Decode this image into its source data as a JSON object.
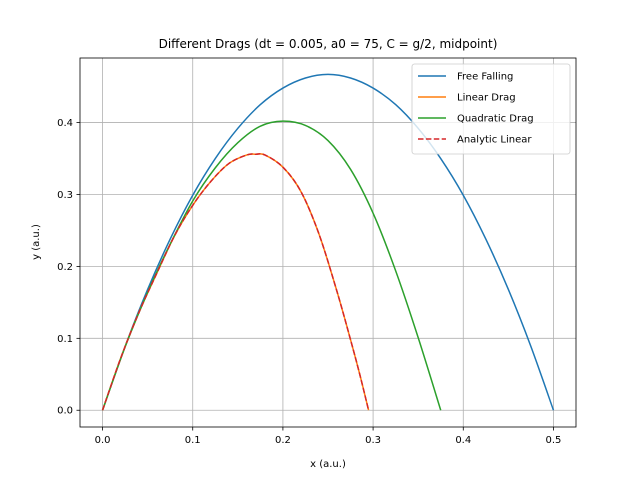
{
  "chart_data": {
    "type": "line",
    "title": "Different Drags (dt = 0.005, a0 = 75, C = g/2, midpoint)",
    "xlabel": "x (a.u.)",
    "ylabel": "y (a.u.)",
    "xlim": [
      -0.025,
      0.525
    ],
    "ylim": [
      -0.0233,
      0.4898
    ],
    "xticks": [
      0.0,
      0.1,
      0.2,
      0.3,
      0.4,
      0.5
    ],
    "xtick_labels": [
      "0.0",
      "0.1",
      "0.2",
      "0.3",
      "0.4",
      "0.5"
    ],
    "yticks": [
      0.0,
      0.1,
      0.2,
      0.3,
      0.4
    ],
    "ytick_labels": [
      "0.0",
      "0.1",
      "0.2",
      "0.3",
      "0.4"
    ],
    "grid": true,
    "legend_position": "upper right",
    "series": [
      {
        "name": "Free Falling",
        "color": "#1f77b4",
        "style": "solid",
        "x": [
          0.0,
          0.025,
          0.05,
          0.075,
          0.1,
          0.125,
          0.15,
          0.175,
          0.2,
          0.225,
          0.25,
          0.275,
          0.3,
          0.325,
          0.35,
          0.375,
          0.4,
          0.425,
          0.45,
          0.475,
          0.5
        ],
        "y": [
          0.0,
          0.0887,
          0.168,
          0.238,
          0.299,
          0.35,
          0.392,
          0.425,
          0.448,
          0.462,
          0.467,
          0.462,
          0.448,
          0.425,
          0.392,
          0.35,
          0.299,
          0.238,
          0.168,
          0.0887,
          0.0
        ]
      },
      {
        "name": "Linear Drag",
        "color": "#ff7f0e",
        "style": "solid",
        "x": [
          0.0,
          0.02,
          0.04,
          0.06,
          0.08,
          0.1,
          0.12,
          0.14,
          0.16,
          0.17,
          0.18,
          0.2,
          0.22,
          0.24,
          0.26,
          0.275,
          0.285,
          0.295
        ],
        "y": [
          0.0,
          0.072,
          0.135,
          0.19,
          0.243,
          0.285,
          0.318,
          0.343,
          0.355,
          0.356,
          0.355,
          0.338,
          0.304,
          0.245,
          0.165,
          0.098,
          0.051,
          0.0
        ]
      },
      {
        "name": "Quadratic Drag",
        "color": "#2ca02c",
        "style": "solid",
        "x": [
          0.0,
          0.025,
          0.05,
          0.075,
          0.1,
          0.125,
          0.15,
          0.175,
          0.2,
          0.225,
          0.25,
          0.275,
          0.3,
          0.325,
          0.35,
          0.375
        ],
        "y": [
          0.0,
          0.088,
          0.164,
          0.231,
          0.291,
          0.337,
          0.372,
          0.395,
          0.402,
          0.396,
          0.375,
          0.335,
          0.274,
          0.194,
          0.101,
          0.0
        ]
      },
      {
        "name": "Analytic Linear",
        "color": "#d62728",
        "style": "dashed",
        "x": [
          0.0,
          0.02,
          0.04,
          0.06,
          0.08,
          0.1,
          0.12,
          0.14,
          0.16,
          0.17,
          0.18,
          0.2,
          0.22,
          0.24,
          0.26,
          0.275,
          0.285,
          0.295
        ],
        "y": [
          0.0,
          0.072,
          0.135,
          0.19,
          0.243,
          0.285,
          0.318,
          0.343,
          0.355,
          0.356,
          0.355,
          0.338,
          0.304,
          0.245,
          0.165,
          0.098,
          0.051,
          0.0
        ]
      }
    ]
  }
}
